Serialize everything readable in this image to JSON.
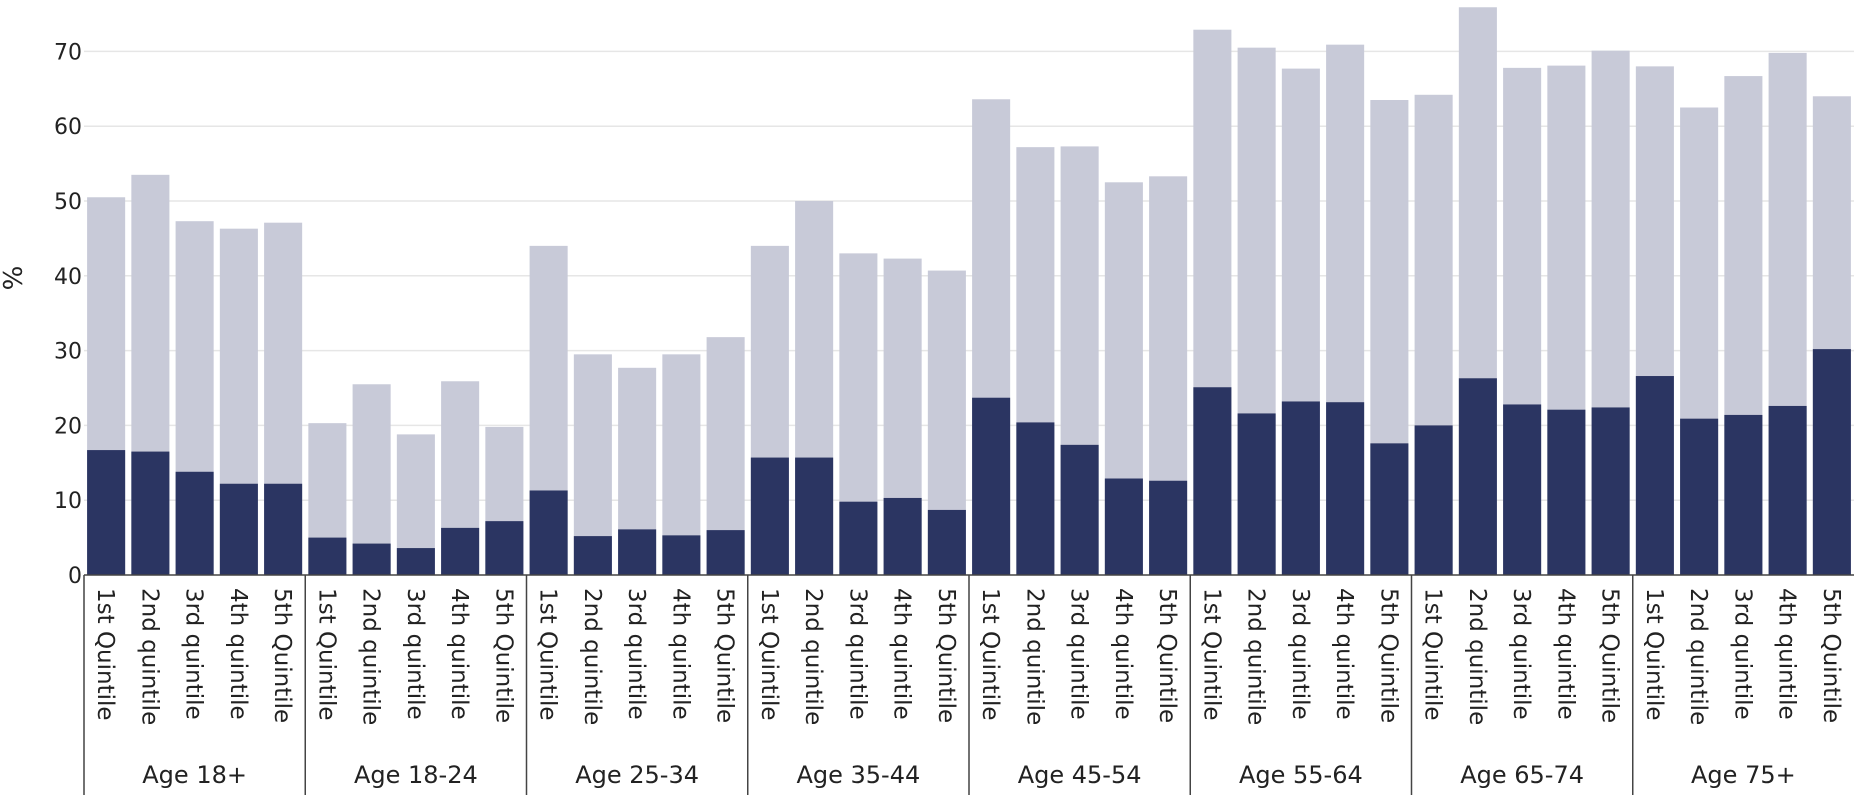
{
  "chart_data": {
    "type": "bar",
    "stacking": "overlay",
    "ylabel": "%",
    "ylim": [
      0,
      77
    ],
    "yticks": [
      0,
      10,
      20,
      30,
      40,
      50,
      60,
      70
    ],
    "grid": true,
    "colors": {
      "dark": "#2b3562",
      "light": "#c8cad8",
      "grid": "#e6e6e6",
      "axis": "#444444"
    },
    "groups": [
      {
        "label": "Age 18+",
        "categories": [
          "1st Quintile",
          "2nd quintile",
          "3rd quintile",
          "4th quintile",
          "5th Quintile"
        ],
        "dark": [
          16.7,
          16.5,
          13.8,
          12.2,
          12.2
        ],
        "light": [
          50.5,
          53.5,
          47.3,
          46.3,
          47.1
        ]
      },
      {
        "label": "Age 18-24",
        "categories": [
          "1st Quintile",
          "2nd quintile",
          "3rd quintile",
          "4th quintile",
          "5th Quintile"
        ],
        "dark": [
          5.0,
          4.2,
          3.6,
          6.3,
          7.2
        ],
        "light": [
          20.3,
          25.5,
          18.8,
          25.9,
          19.8
        ]
      },
      {
        "label": "Age 25-34",
        "categories": [
          "1st Quintile",
          "2nd quintile",
          "3rd quintile",
          "4th quintile",
          "5th Quintile"
        ],
        "dark": [
          11.3,
          5.2,
          6.1,
          5.3,
          6.0
        ],
        "light": [
          44.0,
          29.5,
          27.7,
          29.5,
          31.8
        ]
      },
      {
        "label": "Age 35-44",
        "categories": [
          "1st Quintile",
          "2nd quintile",
          "3rd quintile",
          "4th quintile",
          "5th Quintile"
        ],
        "dark": [
          15.7,
          15.7,
          9.8,
          10.3,
          8.7
        ],
        "light": [
          44.0,
          50.0,
          43.0,
          42.3,
          40.7
        ]
      },
      {
        "label": "Age 45-54",
        "categories": [
          "1st Quintile",
          "2nd quintile",
          "3rd quintile",
          "4th quintile",
          "5th Quintile"
        ],
        "dark": [
          23.7,
          20.4,
          17.4,
          12.9,
          12.6
        ],
        "light": [
          63.6,
          57.2,
          57.3,
          52.5,
          53.3
        ]
      },
      {
        "label": "Age 55-64",
        "categories": [
          "1st Quintile",
          "2nd quintile",
          "3rd quintile",
          "4th quintile",
          "5th Quintile"
        ],
        "dark": [
          25.1,
          21.6,
          23.2,
          23.1,
          17.6
        ],
        "light": [
          72.9,
          70.5,
          67.7,
          70.9,
          63.5
        ]
      },
      {
        "label": "Age 65-74",
        "categories": [
          "1st Quintile",
          "2nd quintile",
          "3rd quintile",
          "4th quintile",
          "5th Quintile"
        ],
        "dark": [
          20.0,
          26.3,
          22.8,
          22.1,
          22.4
        ],
        "light": [
          64.2,
          75.9,
          67.8,
          68.1,
          70.1
        ]
      },
      {
        "label": "Age 75+",
        "categories": [
          "1st Quintile",
          "2nd quintile",
          "3rd quintile",
          "4th quintile",
          "5th Quintile"
        ],
        "dark": [
          26.6,
          20.9,
          21.4,
          22.6,
          30.2
        ],
        "light": [
          68.0,
          62.5,
          66.7,
          69.8,
          64.0
        ]
      }
    ]
  }
}
